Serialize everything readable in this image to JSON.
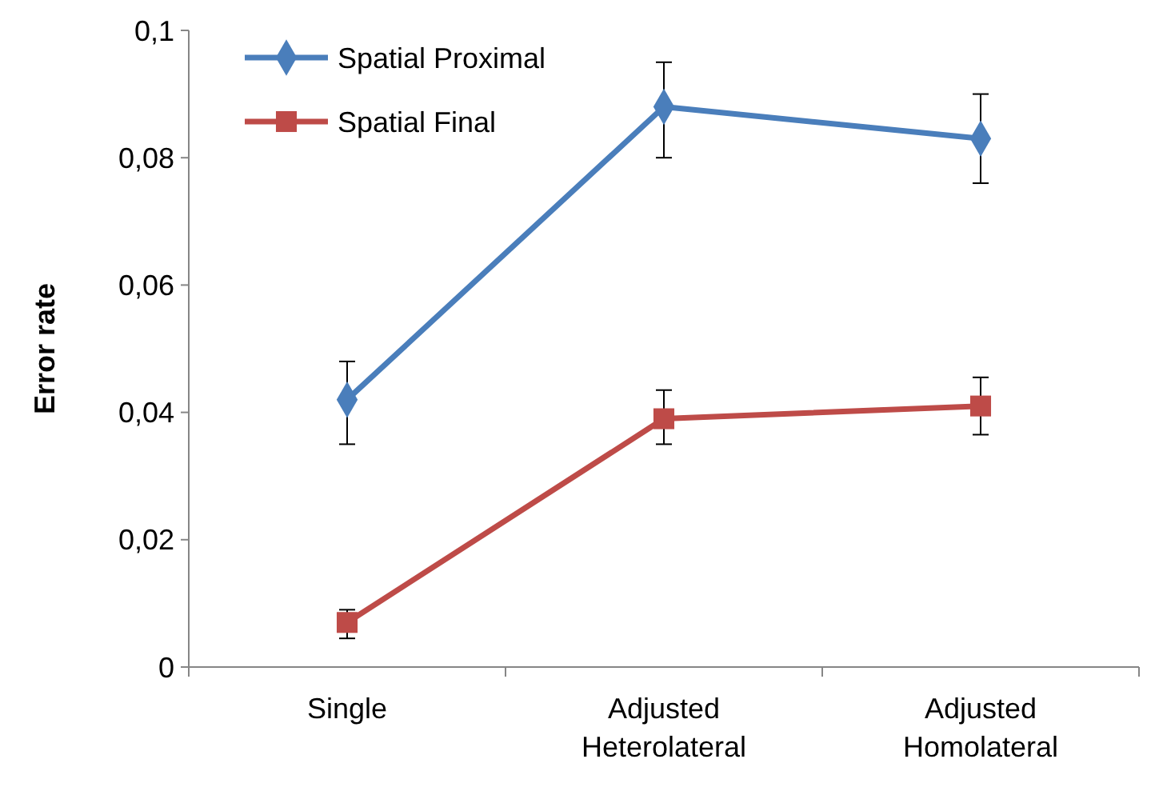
{
  "chart_data": {
    "type": "line",
    "ylabel": "Error rate",
    "categories": [
      "Single",
      "Adjusted Heterolateral",
      "Adjusted Homolateral"
    ],
    "series": [
      {
        "name": "Spatial Proximal",
        "color": "#4a7ebb",
        "marker": "diamond",
        "values": [
          0.042,
          0.088,
          0.083
        ],
        "errors": [
          [
            0.035,
            0.048
          ],
          [
            0.08,
            0.095
          ],
          [
            0.076,
            0.09
          ]
        ]
      },
      {
        "name": "Spatial Final",
        "color": "#be4b48",
        "marker": "square",
        "values": [
          0.007,
          0.039,
          0.041
        ],
        "errors": [
          [
            0.0045,
            0.009
          ],
          [
            0.035,
            0.0435
          ],
          [
            0.0365,
            0.0455
          ]
        ]
      }
    ],
    "ylim": [
      0,
      0.1
    ],
    "yticks": [
      0,
      {
        "value": 0.02,
        "label": "0,02"
      },
      {
        "value": 0.04,
        "label": "0,04"
      },
      {
        "value": 0.06,
        "label": "0,06"
      },
      {
        "value": 0.08,
        "label": "0,08"
      },
      {
        "value": 0.1,
        "label": "0,1"
      }
    ],
    "grid": false,
    "legend": "top left",
    "line_style": "solid"
  }
}
